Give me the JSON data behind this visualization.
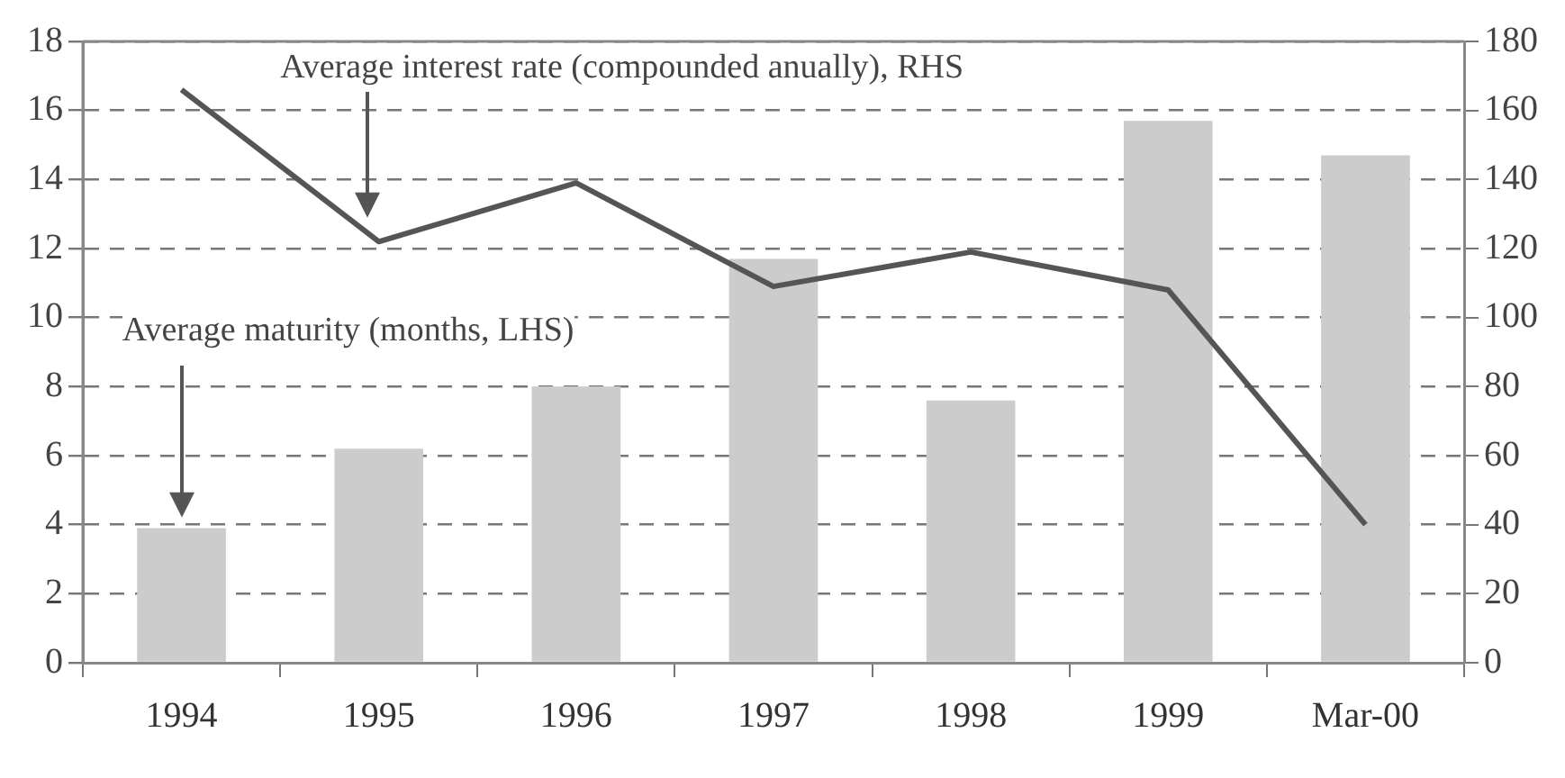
{
  "chart_data": {
    "type": "bar",
    "categories": [
      "1994",
      "1995",
      "1996",
      "1997",
      "1998",
      "1999",
      "Mar-00"
    ],
    "series": [
      {
        "color": "#cccccc",
        "values": [
          3.9,
          6.2,
          8.0,
          11.7,
          7.6,
          15.7,
          14.7
        ]
      },
      {
        "type": "line",
        "axis": "y2",
        "color": "#555555",
        "values": [
          166,
          122,
          139,
          109,
          119,
          108,
          40
        ]
      }
    ],
    "ylim": [
      0,
      18
    ],
    "yticks": [
      0,
      2,
      4,
      6,
      8,
      10,
      12,
      14,
      16,
      18
    ],
    "y2lim": [
      0,
      180
    ],
    "y2ticks": [
      0,
      20,
      40,
      60,
      80,
      100,
      120,
      140,
      160,
      180
    ],
    "grid": "y",
    "legend": false,
    "marker": "none",
    "annotations": [
      "Average interest rate (compounded anually), RHS",
      "Average maturity (months, LHS)"
    ]
  }
}
